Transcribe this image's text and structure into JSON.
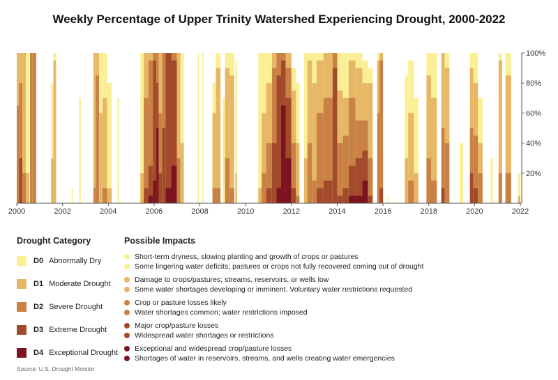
{
  "chart_data": {
    "type": "area",
    "title": "Weekly Percentage of Upper Trinity Watershed Experiencing Drought, 2000-2022",
    "xlim": [
      2000,
      2022
    ],
    "ylim": [
      0,
      100
    ],
    "x_ticks": [
      "2000",
      "2002",
      "2004",
      "2006",
      "2008",
      "2010",
      "2012",
      "2014",
      "2016",
      "2018",
      "2020",
      "2022"
    ],
    "y_ticks": [
      "20%",
      "40%",
      "60%",
      "80%",
      "100%"
    ],
    "y_axis_side": "right",
    "grid": false,
    "series_note_fields": [
      "start",
      "end",
      "D0",
      "D1",
      "D2",
      "D3",
      "D4"
    ],
    "colors": {
      "D0": "#fbef96",
      "D1": "#e6b866",
      "D2": "#c98145",
      "D3": "#a34a2c",
      "D4": "#7b1420"
    },
    "periods": [
      [
        2000.0,
        2000.1,
        100,
        100,
        65,
        0,
        0
      ],
      [
        2000.1,
        2000.25,
        100,
        100,
        80,
        30,
        0
      ],
      [
        2000.25,
        2000.4,
        100,
        100,
        20,
        0,
        0
      ],
      [
        2000.4,
        2000.55,
        100,
        20,
        0,
        0,
        0
      ],
      [
        2000.58,
        2000.68,
        100,
        100,
        100,
        0,
        0
      ],
      [
        2000.68,
        2000.85,
        100,
        100,
        100,
        0,
        0
      ],
      [
        2001.5,
        2001.6,
        80,
        30,
        0,
        0,
        0
      ],
      [
        2001.6,
        2001.72,
        100,
        95,
        0,
        0,
        0
      ],
      [
        2002.4,
        2002.45,
        10,
        0,
        0,
        0,
        0
      ],
      [
        2002.72,
        2002.8,
        70,
        0,
        0,
        0,
        0
      ],
      [
        2003.35,
        2003.45,
        100,
        100,
        10,
        0,
        0
      ],
      [
        2003.45,
        2003.6,
        100,
        100,
        85,
        0,
        0
      ],
      [
        2003.6,
        2003.75,
        100,
        60,
        0,
        0,
        0
      ],
      [
        2003.75,
        2003.95,
        100,
        70,
        10,
        0,
        0
      ],
      [
        2003.95,
        2004.15,
        80,
        10,
        0,
        0,
        0
      ],
      [
        2004.4,
        2004.47,
        70,
        0,
        0,
        0,
        0
      ],
      [
        2005.4,
        2005.55,
        100,
        20,
        0,
        0,
        0
      ],
      [
        2005.55,
        2005.75,
        100,
        100,
        70,
        10,
        0
      ],
      [
        2005.75,
        2005.95,
        100,
        100,
        95,
        25,
        5
      ],
      [
        2005.95,
        2006.1,
        100,
        100,
        100,
        95,
        15
      ],
      [
        2006.1,
        2006.2,
        100,
        100,
        100,
        80,
        50
      ],
      [
        2006.2,
        2006.35,
        100,
        100,
        60,
        20,
        0
      ],
      [
        2006.35,
        2006.5,
        100,
        100,
        100,
        50,
        0
      ],
      [
        2006.5,
        2006.75,
        100,
        100,
        100,
        100,
        10
      ],
      [
        2006.75,
        2007.0,
        100,
        100,
        100,
        95,
        25
      ],
      [
        2007.0,
        2007.15,
        100,
        100,
        30,
        0,
        0
      ],
      [
        2007.15,
        2007.3,
        100,
        40,
        0,
        0,
        0
      ],
      [
        2007.9,
        2007.95,
        100,
        0,
        0,
        0,
        0
      ],
      [
        2008.1,
        2008.15,
        100,
        0,
        0,
        0,
        0
      ],
      [
        2008.55,
        2008.7,
        80,
        60,
        10,
        0,
        0
      ],
      [
        2008.7,
        2008.9,
        100,
        90,
        10,
        0,
        0
      ],
      [
        2009.0,
        2009.1,
        70,
        0,
        0,
        0,
        0
      ],
      [
        2009.1,
        2009.3,
        100,
        90,
        30,
        0,
        0
      ],
      [
        2009.3,
        2009.5,
        100,
        85,
        10,
        0,
        0
      ],
      [
        2009.55,
        2009.62,
        95,
        20,
        0,
        0,
        0
      ],
      [
        2010.55,
        2010.7,
        100,
        10,
        0,
        0,
        0
      ],
      [
        2010.7,
        2010.9,
        100,
        60,
        20,
        0,
        0
      ],
      [
        2010.9,
        2011.15,
        100,
        80,
        40,
        10,
        0
      ],
      [
        2011.15,
        2011.35,
        100,
        100,
        90,
        40,
        0
      ],
      [
        2011.35,
        2011.55,
        100,
        100,
        100,
        85,
        10
      ],
      [
        2011.55,
        2011.75,
        100,
        100,
        100,
        95,
        65
      ],
      [
        2011.75,
        2012.0,
        100,
        100,
        90,
        70,
        30
      ],
      [
        2012.0,
        2012.2,
        90,
        75,
        40,
        10,
        0
      ],
      [
        2012.2,
        2012.35,
        80,
        40,
        5,
        0,
        0
      ],
      [
        2012.55,
        2012.7,
        100,
        30,
        0,
        0,
        0
      ],
      [
        2012.7,
        2012.9,
        100,
        95,
        40,
        0,
        0
      ],
      [
        2012.9,
        2013.1,
        100,
        80,
        15,
        0,
        0
      ],
      [
        2013.1,
        2013.4,
        100,
        95,
        60,
        10,
        0
      ],
      [
        2013.4,
        2013.8,
        100,
        100,
        70,
        15,
        0
      ],
      [
        2013.8,
        2014.0,
        100,
        100,
        100,
        90,
        0
      ],
      [
        2014.0,
        2014.25,
        100,
        75,
        40,
        5,
        0
      ],
      [
        2014.25,
        2014.5,
        100,
        70,
        45,
        10,
        0
      ],
      [
        2014.5,
        2014.8,
        100,
        95,
        70,
        25,
        5
      ],
      [
        2014.8,
        2015.1,
        100,
        90,
        55,
        30,
        5
      ],
      [
        2015.1,
        2015.35,
        95,
        80,
        55,
        35,
        15
      ],
      [
        2015.35,
        2015.55,
        90,
        80,
        30,
        5,
        0
      ],
      [
        2015.75,
        2015.85,
        100,
        95,
        60,
        0,
        0
      ],
      [
        2015.85,
        2016.0,
        100,
        100,
        95,
        10,
        0
      ],
      [
        2016.2,
        2016.25,
        5,
        0,
        0,
        0,
        0
      ],
      [
        2016.95,
        2017.1,
        85,
        30,
        0,
        0,
        0
      ],
      [
        2017.1,
        2017.35,
        95,
        60,
        15,
        0,
        0
      ],
      [
        2017.35,
        2017.55,
        70,
        20,
        0,
        0,
        0
      ],
      [
        2017.9,
        2018.1,
        100,
        85,
        30,
        0,
        0
      ],
      [
        2018.1,
        2018.35,
        100,
        70,
        15,
        0,
        0
      ],
      [
        2018.55,
        2018.7,
        100,
        100,
        50,
        10,
        0
      ],
      [
        2018.7,
        2018.9,
        100,
        90,
        40,
        0,
        0
      ],
      [
        2019.35,
        2019.5,
        40,
        0,
        0,
        0,
        0
      ],
      [
        2019.8,
        2019.95,
        100,
        90,
        50,
        20,
        0
      ],
      [
        2019.95,
        2020.15,
        100,
        80,
        45,
        10,
        0
      ],
      [
        2020.15,
        2020.35,
        70,
        40,
        20,
        0,
        0
      ],
      [
        2020.7,
        2020.8,
        30,
        0,
        0,
        0,
        0
      ],
      [
        2021.05,
        2021.2,
        100,
        95,
        20,
        0,
        0
      ],
      [
        2021.35,
        2021.6,
        100,
        85,
        20,
        0,
        0
      ],
      [
        2021.9,
        2022.0,
        20,
        5,
        0,
        0,
        0
      ]
    ]
  },
  "legend": {
    "category_header": "Drought Category",
    "impacts_header": "Possible Impacts",
    "categories": [
      {
        "code": "D0",
        "label": "Abnormally Dry",
        "color": "#fbef96",
        "impacts": [
          "Short-term dryness, slowing planting and growth of crops or pastures",
          "Some lingering water deficits; pastures or crops not fully recovered coming out of drought"
        ]
      },
      {
        "code": "D1",
        "label": "Moderate Drought",
        "color": "#e6b866",
        "impacts": [
          "Damage to crops/pastures; streams, reservoirs, or wells low",
          "Some water shortages developing or imminent. Voluntary water restrictions requested"
        ]
      },
      {
        "code": "D2",
        "label": "Severe Drought",
        "color": "#c98145",
        "impacts": [
          "Crop or pasture losses likely",
          "Water shortages common; water restrictions imposed"
        ]
      },
      {
        "code": "D3",
        "label": "Extreme Drought",
        "color": "#a34a2c",
        "impacts": [
          "Major crop/pasture losses",
          "Widespread water shortages or restrictions"
        ]
      },
      {
        "code": "D4",
        "label": "Exceptional Drought",
        "color": "#7b1420",
        "impacts": [
          "Exceptional and widespread crop/pasture losses",
          "Shortages of water in reservoirs, streams, and wells creating water emergencies"
        ]
      }
    ]
  },
  "source": "Source: U.S. Drought Monitor"
}
